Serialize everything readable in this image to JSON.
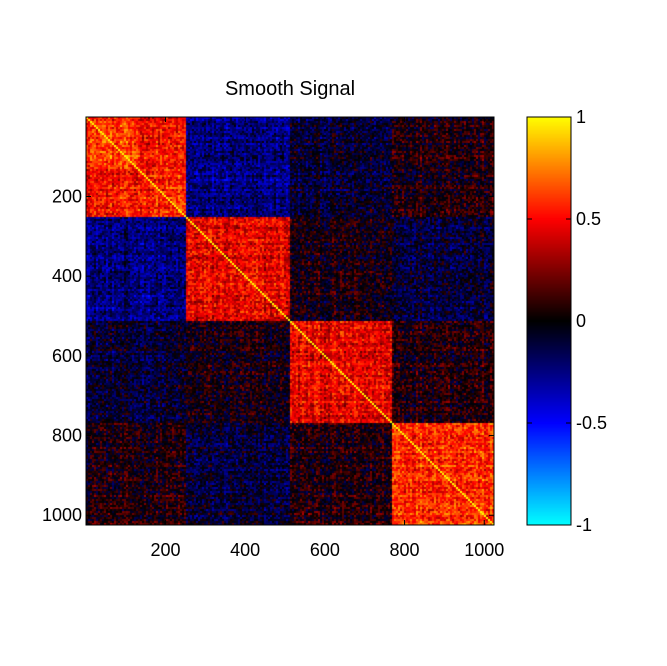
{
  "chart_data": {
    "type": "heatmap",
    "title": "Smooth Signal",
    "xlabel": "",
    "ylabel": "",
    "matrix_size": 1024,
    "xlim": [
      1,
      1024
    ],
    "ylim": [
      1,
      1024
    ],
    "x_ticks": [
      200,
      400,
      600,
      800,
      1000
    ],
    "y_ticks": [
      200,
      400,
      600,
      800,
      1000
    ],
    "x_tick_labels": [
      "200",
      "400",
      "600",
      "800",
      "1000"
    ],
    "y_tick_labels": [
      "200",
      "400",
      "600",
      "800",
      "1000"
    ],
    "diagonal_value": 1,
    "blocks": [
      {
        "start": 1,
        "end": 250,
        "within_value": 0.5
      },
      {
        "start": 251,
        "end": 510,
        "within_value": 0.45
      },
      {
        "start": 511,
        "end": 770,
        "within_value": 0.45
      },
      {
        "start": 771,
        "end": 1024,
        "within_value": 0.55
      }
    ],
    "sub_blocks": [
      {
        "start": 1,
        "end": 130,
        "within_value": 0.6
      },
      {
        "start": 131,
        "end": 250,
        "within_value": 0.55
      },
      {
        "start": 771,
        "end": 1024,
        "within_value": 0.6
      }
    ],
    "between_block_values": [
      [
        null,
        -0.25,
        -0.1,
        0.05
      ],
      [
        -0.25,
        null,
        0.0,
        -0.1
      ],
      [
        -0.1,
        0.0,
        null,
        0.05
      ],
      [
        0.05,
        -0.1,
        0.05,
        null
      ]
    ],
    "colorbar": {
      "range": [
        -1,
        1
      ],
      "ticks": [
        1,
        0.5,
        0,
        -0.5,
        -1
      ],
      "tick_labels": [
        "1",
        "0.5",
        "0",
        "-0.5",
        "-1"
      ],
      "colormap": [
        {
          "value": -1,
          "color": "#00ffff"
        },
        {
          "value": -0.5,
          "color": "#0000ff"
        },
        {
          "value": 0,
          "color": "#000000"
        },
        {
          "value": 0.5,
          "color": "#ff0000"
        },
        {
          "value": 1,
          "color": "#ffff00"
        }
      ]
    }
  }
}
